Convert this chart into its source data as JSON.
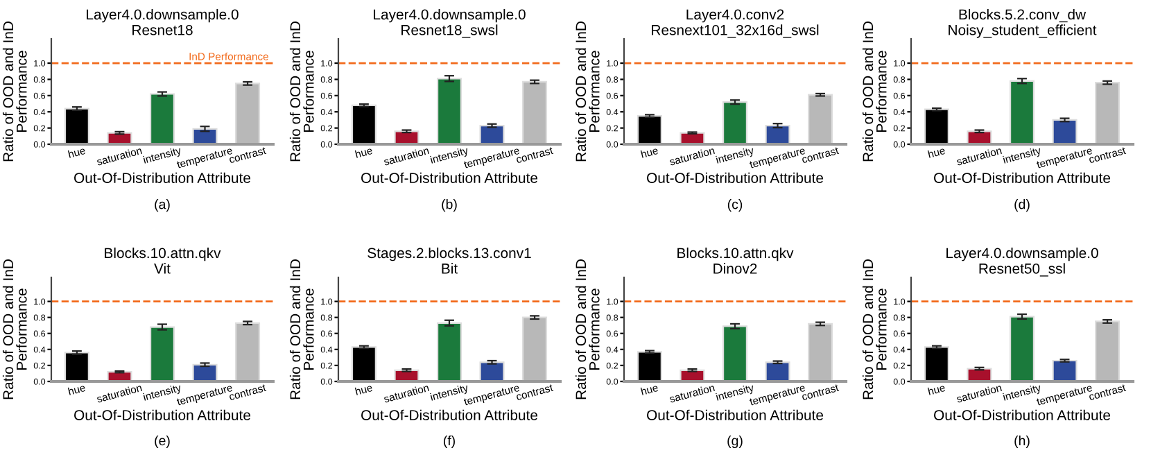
{
  "chart_data": [
    {
      "type": "bar",
      "title": "Layer4.0.downsample.0\nResnet18",
      "xlabel": "Out-Of-Distribution Attribute",
      "ylabel": "Ratio of OOD and InD\nPerformance",
      "annotations": [
        "(a)"
      ],
      "categories": [
        "hue",
        "saturation",
        "intensity",
        "temperature",
        "contrast"
      ],
      "colors": [
        "#000000",
        "#a8102c",
        "#1b7a3c",
        "#2d4a9a",
        "#b8b8b8"
      ],
      "values": [
        0.44,
        0.14,
        0.62,
        0.19,
        0.75
      ],
      "errors": [
        0.02,
        0.015,
        0.025,
        0.03,
        0.02
      ],
      "ylim": [
        0,
        1.3
      ],
      "yticks": [
        {
          "value": 0,
          "label": "0.0"
        },
        {
          "value": 0.2,
          "label": "0.2"
        },
        {
          "value": 0.4,
          "label": "0.4"
        },
        {
          "value": 0.6,
          "label": "0.6"
        },
        {
          "value": 0.8,
          "label": "0.8"
        },
        {
          "value": 1.0,
          "label": "1.0"
        }
      ],
      "ref_lines": [
        {
          "axis": "y",
          "value": 1.0,
          "label": "InD Performance",
          "color": "#f26a1b",
          "line_style": "dashed"
        }
      ],
      "grid": false,
      "legend": false
    },
    {
      "type": "bar",
      "title": "Layer4.0.downsample.0\nResnet18_swsl",
      "xlabel": "Out-Of-Distribution Attribute",
      "ylabel": "Ratio of OOD and InD\nPerformance",
      "annotations": [
        "(b)"
      ],
      "categories": [
        "hue",
        "saturation",
        "intensity",
        "temperature",
        "contrast"
      ],
      "colors": [
        "#000000",
        "#a8102c",
        "#1b7a3c",
        "#2d4a9a",
        "#b8b8b8"
      ],
      "values": [
        0.48,
        0.16,
        0.81,
        0.23,
        0.77
      ],
      "errors": [
        0.015,
        0.015,
        0.035,
        0.02,
        0.02
      ],
      "ylim": [
        0,
        1.3
      ],
      "yticks": [
        {
          "value": 0,
          "label": "0.0"
        },
        {
          "value": 0.2,
          "label": "0.2"
        },
        {
          "value": 0.4,
          "label": "0.4"
        },
        {
          "value": 0.6,
          "label": "0.6"
        },
        {
          "value": 0.8,
          "label": "0.8"
        },
        {
          "value": 1.0,
          "label": "1.0"
        }
      ],
      "ref_lines": [
        {
          "axis": "y",
          "value": 1.0,
          "color": "#f26a1b",
          "line_style": "dashed"
        }
      ],
      "grid": false,
      "legend": false
    },
    {
      "type": "bar",
      "title": "Layer4.0.conv2\nResnext101_32x16d_swsl",
      "xlabel": "Out-Of-Distribution Attribute",
      "ylabel": "Ratio of OOD and InD\nPerformance",
      "annotations": [
        "(c)"
      ],
      "categories": [
        "hue",
        "saturation",
        "intensity",
        "temperature",
        "contrast"
      ],
      "colors": [
        "#000000",
        "#a8102c",
        "#1b7a3c",
        "#2d4a9a",
        "#b8b8b8"
      ],
      "values": [
        0.35,
        0.14,
        0.52,
        0.23,
        0.61
      ],
      "errors": [
        0.015,
        0.01,
        0.025,
        0.025,
        0.015
      ],
      "ylim": [
        0,
        1.3
      ],
      "yticks": [
        {
          "value": 0,
          "label": "0.0"
        },
        {
          "value": 0.2,
          "label": "0.2"
        },
        {
          "value": 0.4,
          "label": "0.4"
        },
        {
          "value": 0.6,
          "label": "0.6"
        },
        {
          "value": 0.8,
          "label": "0.8"
        },
        {
          "value": 1.0,
          "label": "1.0"
        }
      ],
      "ref_lines": [
        {
          "axis": "y",
          "value": 1.0,
          "color": "#f26a1b",
          "line_style": "dashed"
        }
      ],
      "grid": false,
      "legend": false
    },
    {
      "type": "bar",
      "title": "Blocks.5.2.conv_dw\nNoisy_student_efficient",
      "xlabel": "Out-Of-Distribution Attribute",
      "ylabel": "Ratio of OOD and InD\nPerformance",
      "annotations": [
        "(d)"
      ],
      "categories": [
        "hue",
        "saturation",
        "intensity",
        "temperature",
        "contrast"
      ],
      "colors": [
        "#000000",
        "#a8102c",
        "#1b7a3c",
        "#2d4a9a",
        "#b8b8b8"
      ],
      "values": [
        0.43,
        0.16,
        0.78,
        0.3,
        0.76
      ],
      "errors": [
        0.015,
        0.015,
        0.03,
        0.02,
        0.02
      ],
      "ylim": [
        0,
        1.3
      ],
      "yticks": [
        {
          "value": 0,
          "label": "0.0"
        },
        {
          "value": 0.2,
          "label": "0.2"
        },
        {
          "value": 0.4,
          "label": "0.4"
        },
        {
          "value": 0.6,
          "label": "0.6"
        },
        {
          "value": 0.8,
          "label": "0.8"
        },
        {
          "value": 1.0,
          "label": "1.0"
        }
      ],
      "ref_lines": [
        {
          "axis": "y",
          "value": 1.0,
          "color": "#f26a1b",
          "line_style": "dashed"
        }
      ],
      "grid": false,
      "legend": false
    },
    {
      "type": "bar",
      "title": "Blocks.10.attn.qkv\nVit",
      "xlabel": "Out-Of-Distribution Attribute",
      "ylabel": "Ratio of OOD and InD\nPerformance",
      "annotations": [
        "(e)"
      ],
      "categories": [
        "hue",
        "saturation",
        "intensity",
        "temperature",
        "contrast"
      ],
      "colors": [
        "#000000",
        "#a8102c",
        "#1b7a3c",
        "#2d4a9a",
        "#b8b8b8"
      ],
      "values": [
        0.36,
        0.12,
        0.68,
        0.21,
        0.73
      ],
      "errors": [
        0.02,
        0.01,
        0.035,
        0.02,
        0.02
      ],
      "ylim": [
        0,
        1.3
      ],
      "yticks": [
        {
          "value": 0,
          "label": "0.0"
        },
        {
          "value": 0.2,
          "label": "0.2"
        },
        {
          "value": 0.4,
          "label": "0.4"
        },
        {
          "value": 0.6,
          "label": "0.6"
        },
        {
          "value": 0.8,
          "label": "0.8"
        },
        {
          "value": 1.0,
          "label": "1.0"
        }
      ],
      "ref_lines": [
        {
          "axis": "y",
          "value": 1.0,
          "color": "#f26a1b",
          "line_style": "dashed"
        }
      ],
      "grid": false,
      "legend": false
    },
    {
      "type": "bar",
      "title": "Stages.2.blocks.13.conv1\nBit",
      "xlabel": "Out-Of-Distribution Attribute",
      "ylabel": "Ratio of OOD and InD\nPerformance",
      "annotations": [
        "(f)"
      ],
      "categories": [
        "hue",
        "saturation",
        "intensity",
        "temperature",
        "contrast"
      ],
      "colors": [
        "#000000",
        "#a8102c",
        "#1b7a3c",
        "#2d4a9a",
        "#b8b8b8"
      ],
      "values": [
        0.43,
        0.14,
        0.73,
        0.24,
        0.8
      ],
      "errors": [
        0.015,
        0.015,
        0.035,
        0.02,
        0.02
      ],
      "ylim": [
        0,
        1.3
      ],
      "yticks": [
        {
          "value": 0,
          "label": "0.0"
        },
        {
          "value": 0.2,
          "label": "0.2"
        },
        {
          "value": 0.4,
          "label": "0.4"
        },
        {
          "value": 0.6,
          "label": "0.6"
        },
        {
          "value": 0.8,
          "label": "0.8"
        },
        {
          "value": 1.0,
          "label": "1.0"
        }
      ],
      "ref_lines": [
        {
          "axis": "y",
          "value": 1.0,
          "color": "#f26a1b",
          "line_style": "dashed"
        }
      ],
      "grid": false,
      "legend": false
    },
    {
      "type": "bar",
      "title": "Blocks.10.attn.qkv\nDinov2",
      "xlabel": "Out-Of-Distribution Attribute",
      "ylabel": "Ratio of OOD and InD\nPerformance",
      "annotations": [
        "(g)"
      ],
      "categories": [
        "hue",
        "saturation",
        "intensity",
        "temperature",
        "contrast"
      ],
      "colors": [
        "#000000",
        "#a8102c",
        "#1b7a3c",
        "#2d4a9a",
        "#b8b8b8"
      ],
      "values": [
        0.37,
        0.14,
        0.69,
        0.24,
        0.72
      ],
      "errors": [
        0.015,
        0.015,
        0.03,
        0.015,
        0.02
      ],
      "ylim": [
        0,
        1.3
      ],
      "yticks": [
        {
          "value": 0,
          "label": "0.0"
        },
        {
          "value": 0.2,
          "label": "0.2"
        },
        {
          "value": 0.4,
          "label": "0.4"
        },
        {
          "value": 0.6,
          "label": "0.6"
        },
        {
          "value": 0.8,
          "label": "0.8"
        },
        {
          "value": 1.0,
          "label": "1.0"
        }
      ],
      "ref_lines": [
        {
          "axis": "y",
          "value": 1.0,
          "color": "#f26a1b",
          "line_style": "dashed"
        }
      ],
      "grid": false,
      "legend": false
    },
    {
      "type": "bar",
      "title": "Layer4.0.downsample.0\nResnet50_ssl",
      "xlabel": "Out-Of-Distribution Attribute",
      "ylabel": "Ratio of OOD and InD\nPerformance",
      "annotations": [
        "(h)"
      ],
      "categories": [
        "hue",
        "saturation",
        "intensity",
        "temperature",
        "contrast"
      ],
      "colors": [
        "#000000",
        "#a8102c",
        "#1b7a3c",
        "#2d4a9a",
        "#b8b8b8"
      ],
      "values": [
        0.43,
        0.16,
        0.81,
        0.26,
        0.75
      ],
      "errors": [
        0.015,
        0.015,
        0.03,
        0.015,
        0.02
      ],
      "ylim": [
        0,
        1.3
      ],
      "yticks": [
        {
          "value": 0,
          "label": "0.0"
        },
        {
          "value": 0.2,
          "label": "0.2"
        },
        {
          "value": 0.4,
          "label": "0.4"
        },
        {
          "value": 0.6,
          "label": "0.6"
        },
        {
          "value": 0.8,
          "label": "0.8"
        },
        {
          "value": 1.0,
          "label": "1.0"
        }
      ],
      "ref_lines": [
        {
          "axis": "y",
          "value": 1.0,
          "color": "#f26a1b",
          "line_style": "dashed"
        }
      ],
      "grid": false,
      "legend": false
    }
  ]
}
